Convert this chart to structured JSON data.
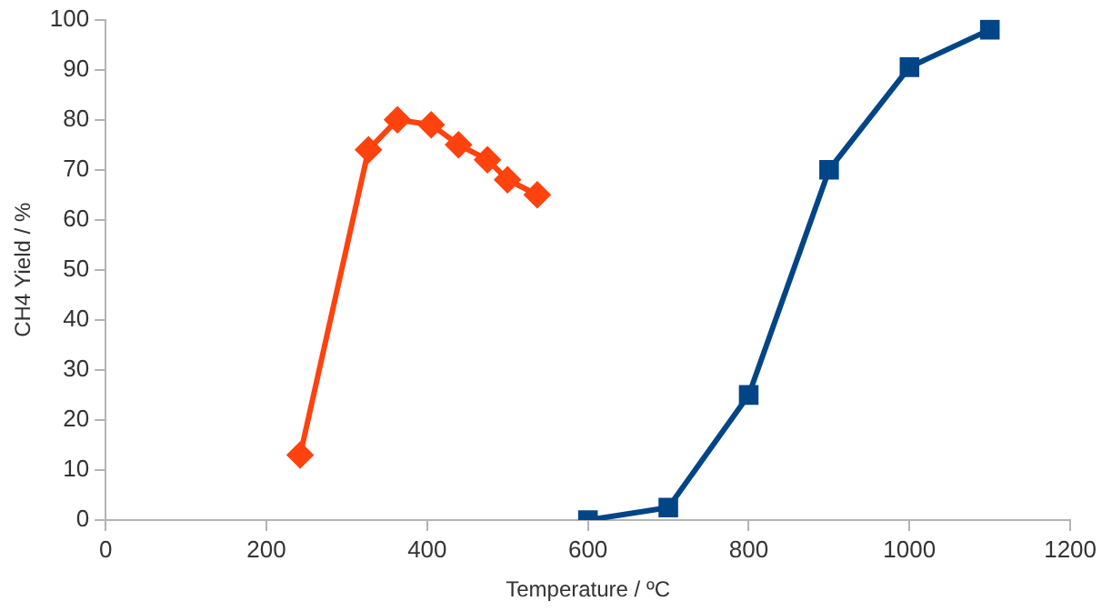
{
  "chart_data": {
    "type": "line",
    "xlabel": "Temperature / ºC",
    "ylabel": "CH4 Yield / %",
    "xlim": [
      0,
      1200
    ],
    "xticks": [
      0,
      200,
      400,
      600,
      800,
      1000,
      1200
    ],
    "ylim": [
      0,
      100
    ],
    "yticks": [
      0,
      10,
      20,
      30,
      40,
      50,
      60,
      70,
      80,
      90,
      100
    ],
    "grid": false,
    "legend": false,
    "line_style": "solid",
    "series": [
      {
        "color": "#ff420e",
        "marker": "diamond",
        "x": [
          242,
          327,
          363,
          405,
          439,
          475,
          500,
          537
        ],
        "values": [
          13,
          74,
          80,
          79,
          75,
          72,
          68,
          65
        ]
      },
      {
        "color": "#004586",
        "marker": "square",
        "x": [
          600,
          700,
          800,
          900,
          1000,
          1100
        ],
        "values": [
          0,
          2.5,
          25,
          70,
          90.5,
          98
        ]
      }
    ]
  }
}
